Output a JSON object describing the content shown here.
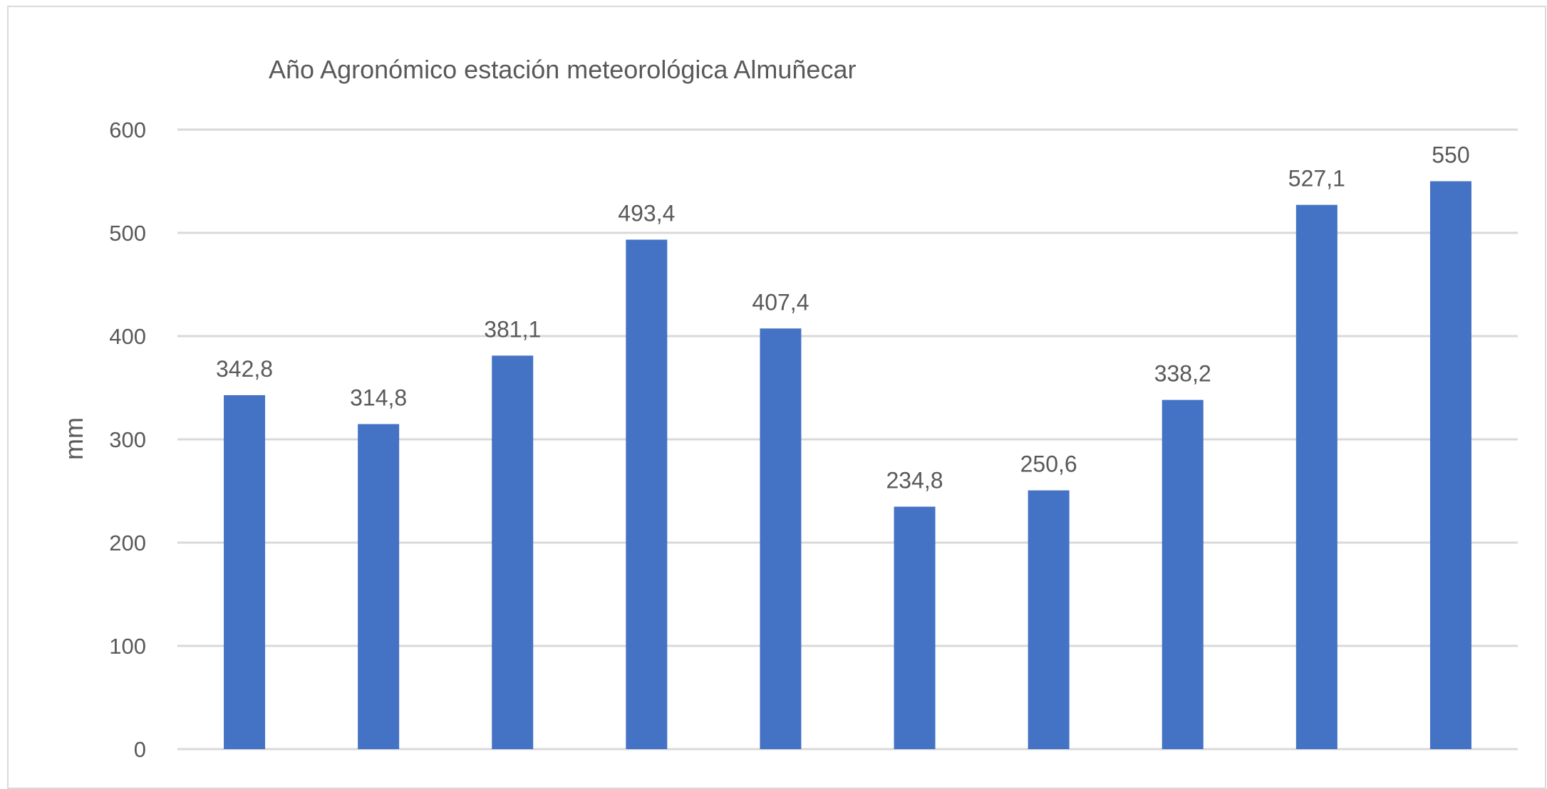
{
  "chart_data": {
    "type": "bar",
    "title": "Año Agronómico estación meteorológica Almuñecar",
    "xlabel": "",
    "ylabel": "mm",
    "categories": [
      "",
      "",
      "",
      "",
      "",
      "",
      "",
      "",
      "",
      ""
    ],
    "values": [
      342.8,
      314.8,
      381.1,
      493.4,
      407.4,
      234.8,
      250.6,
      338.2,
      527.1,
      550
    ],
    "data_labels": [
      "342,8",
      "314,8",
      "381,1",
      "493,4",
      "407,4",
      "234,8",
      "250,6",
      "338,2",
      "527,1",
      "550"
    ],
    "ylim": [
      0,
      600
    ],
    "yticks": [
      "0",
      "100",
      "200",
      "300",
      "400",
      "500",
      "600"
    ],
    "grid": true,
    "legend": "none",
    "colors": {
      "bar": "#4472C4",
      "grid": "#d9d9d9",
      "text": "#595959"
    }
  }
}
